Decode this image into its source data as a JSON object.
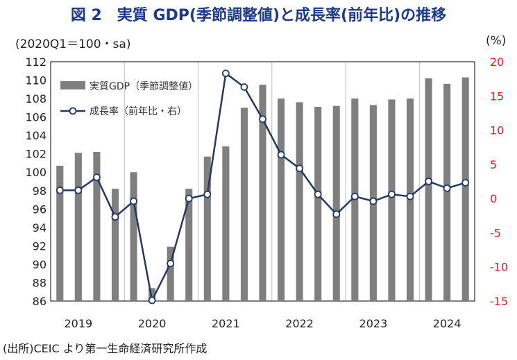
{
  "title": "図 2　実質 GDP(季節調整値)と成長率(前年比)の推移",
  "left_unit": "(2020Q1＝100・sa)",
  "right_unit": "(%)",
  "source": "(出所)CEIC より第一生命経済研究所作成",
  "colors": {
    "bar": "#7f7f7f",
    "line": "#1f3864",
    "right_axis": "#e31b23",
    "title": "#1b3a8c"
  },
  "chart_data": {
    "type": "bar",
    "x_labels": [
      "2019",
      "2020",
      "2021",
      "2022",
      "2023",
      "2024"
    ],
    "quarters": [
      "2019Q1",
      "2019Q2",
      "2019Q3",
      "2019Q4",
      "2020Q1",
      "2020Q2",
      "2020Q3",
      "2020Q4",
      "2021Q1",
      "2021Q2",
      "2021Q3",
      "2021Q4",
      "2022Q1",
      "2022Q2",
      "2022Q3",
      "2022Q4",
      "2023Q1",
      "2023Q2",
      "2023Q3",
      "2023Q4",
      "2024Q1",
      "2024Q2",
      "2024Q3"
    ],
    "series": [
      {
        "name": "実質GDP（季節調整値）",
        "type": "bar",
        "axis": "left",
        "values": [
          100.7,
          102.1,
          102.2,
          98.2,
          100.0,
          87.4,
          91.9,
          98.2,
          101.7,
          102.8,
          107.0,
          109.5,
          108.0,
          107.6,
          107.1,
          107.2,
          108.0,
          107.3,
          107.9,
          108.0,
          110.2,
          109.6,
          110.3
        ]
      },
      {
        "name": "成長率（前年比・右）",
        "type": "line",
        "axis": "right",
        "values": [
          1.2,
          1.2,
          3.1,
          -2.7,
          -0.4,
          -14.9,
          -9.5,
          0.0,
          0.6,
          18.3,
          16.3,
          11.6,
          6.4,
          4.4,
          0.6,
          -2.3,
          0.3,
          -0.4,
          0.6,
          0.3,
          2.5,
          1.5,
          2.3
        ]
      }
    ],
    "left_ylim": [
      86,
      112
    ],
    "left_ticks": [
      86,
      88,
      90,
      92,
      94,
      96,
      98,
      100,
      102,
      104,
      106,
      108,
      110,
      112
    ],
    "right_ylim": [
      -15,
      20
    ],
    "right_ticks": [
      -15,
      -10,
      -5,
      0,
      5,
      10,
      15,
      20
    ],
    "grid": "vertical",
    "legend_position": "top-left"
  }
}
